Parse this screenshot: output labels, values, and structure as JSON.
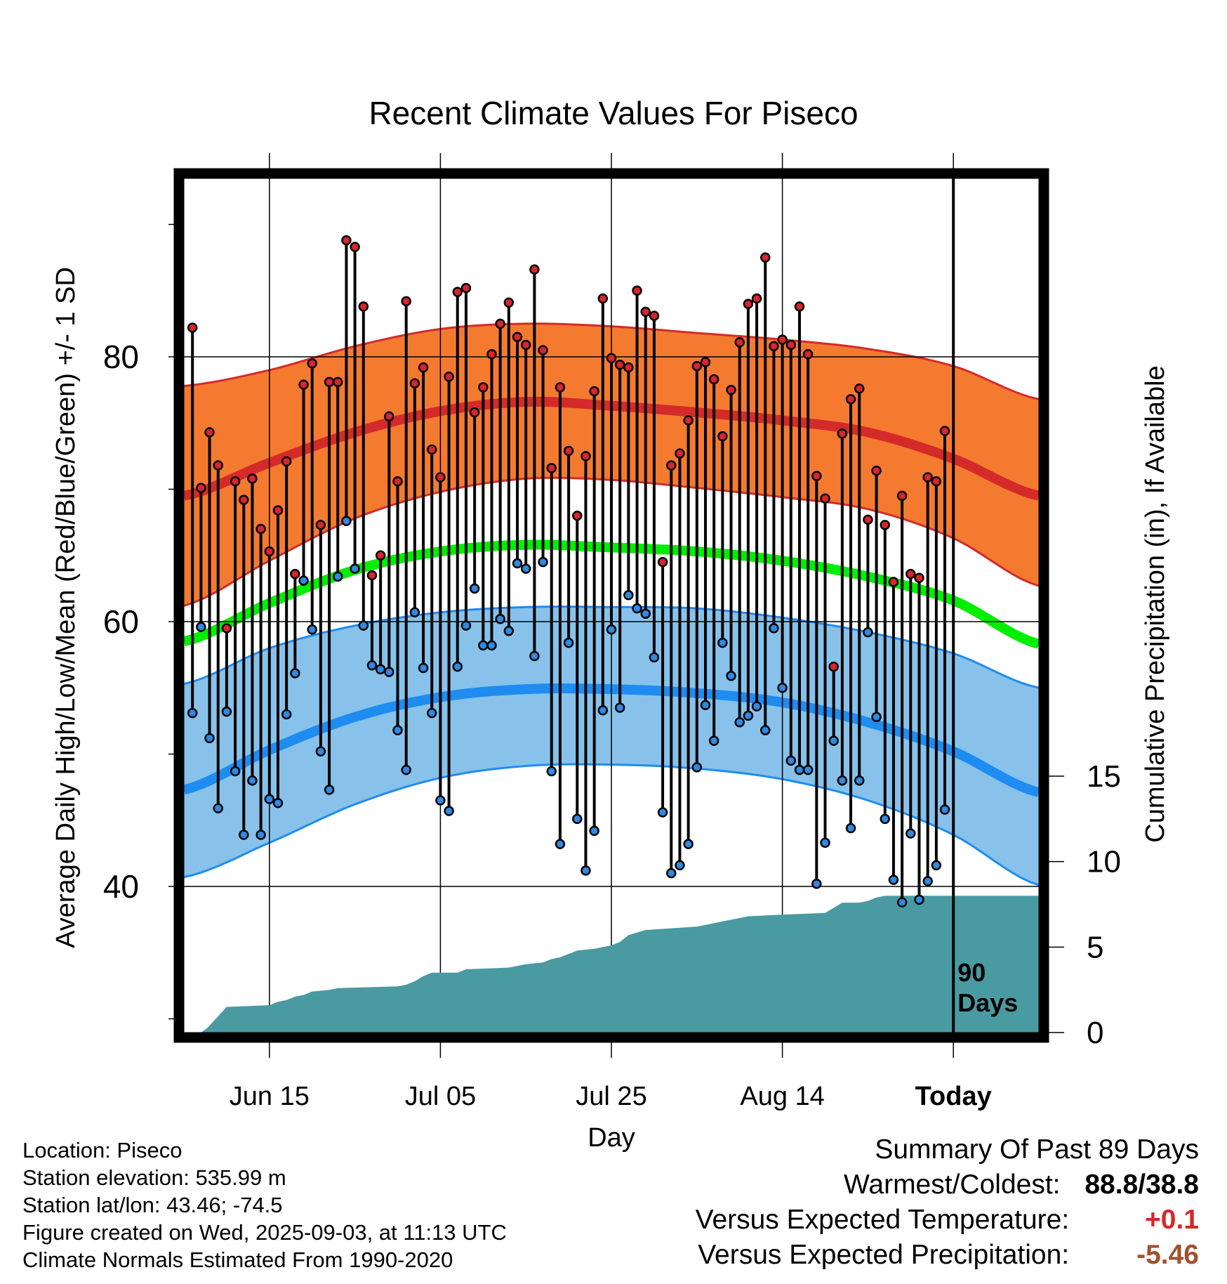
{
  "title": "Recent Climate Values For Piseco",
  "info": {
    "location": "Location: Piseco",
    "elevation": "Station elevation: 535.99 m",
    "latlon": "Station lat/lon: 43.46; -74.5",
    "created": "Figure created on Wed, 2025-09-03, at 11:13 UTC",
    "normals": "Climate Normals Estimated From 1990-2020"
  },
  "summary": {
    "heading": "Summary Of Past 89 Days",
    "warm_cold_label": "Warmest/Coldest:",
    "warm_cold_value": "88.8/38.8",
    "temp_label": "Versus Expected Temperature:",
    "temp_value": "+0.1",
    "precip_label": "Versus Expected Precipitation:",
    "precip_value": "-5.46"
  },
  "colors": {
    "high_band": "#f47a30",
    "high_mean": "#d42a2a",
    "low_band": "#88c2ea",
    "low_mean": "#1e8cf0",
    "mean_line": "#00ee00",
    "precip": "#4a9aa2",
    "high_marker": "#d8262a",
    "low_marker": "#2f8ae0",
    "temp_value": "#d42a2a",
    "precip_value": "#a0522d"
  },
  "chart_data": {
    "type": "line",
    "xlabel": "Day",
    "ylabel": "Average Daily High/Low/Mean (Red/Blue/Green) +/- 1 SD",
    "y2label": "Cumulative Precipitation (in), If Available",
    "x_tick_labels": [
      "Jun 15",
      "Jul 05",
      "Jul 25",
      "Aug 14",
      "Today"
    ],
    "x_tick_days": [
      10,
      30,
      50,
      70,
      90
    ],
    "y_ticks": [
      40,
      60,
      80
    ],
    "y_minor_ticks": [
      30,
      50,
      70,
      90
    ],
    "y_range": [
      29.5,
      93
    ],
    "y2_ticks": [
      0,
      5,
      10,
      15
    ],
    "y2_range": [
      0,
      50
    ],
    "x_range": [
      0,
      100
    ],
    "today_marker": {
      "day": 90,
      "label_line1": "90",
      "label_line2": "Days"
    },
    "normals": {
      "days": [
        0,
        10,
        20,
        30,
        40,
        50,
        60,
        70,
        80,
        90,
        100
      ],
      "high_mean": [
        69.5,
        72.0,
        74.3,
        75.9,
        76.6,
        76.3,
        75.8,
        75.2,
        74.3,
        72.3,
        69.5
      ],
      "high_upper": [
        77.8,
        79.0,
        80.8,
        82.1,
        82.5,
        82.3,
        81.8,
        81.3,
        80.6,
        79.3,
        76.8
      ],
      "high_lower": [
        61.2,
        64.6,
        67.8,
        69.8,
        70.8,
        70.7,
        70.1,
        69.4,
        68.5,
        66.3,
        62.7
      ],
      "mean": [
        58.5,
        61.4,
        63.9,
        65.3,
        65.8,
        65.6,
        65.3,
        64.6,
        63.4,
        61.6,
        58.3
      ],
      "low_mean": [
        47.3,
        50.3,
        52.8,
        54.3,
        54.9,
        54.9,
        54.6,
        53.9,
        52.4,
        50.2,
        47.1
      ],
      "low_upper": [
        55.3,
        58.0,
        59.7,
        60.7,
        61.1,
        61.1,
        61.0,
        60.3,
        59.2,
        57.6,
        55.0
      ],
      "low_lower": [
        40.7,
        43.3,
        46.2,
        48.2,
        49.1,
        49.2,
        48.9,
        48.1,
        46.5,
        43.9,
        40.1
      ]
    },
    "observations": {
      "days": [
        1,
        2,
        3,
        4,
        5,
        6,
        7,
        8,
        9,
        10,
        11,
        12,
        13,
        14,
        15,
        16,
        17,
        18,
        19,
        20,
        21,
        22,
        23,
        24,
        25,
        26,
        27,
        28,
        29,
        30,
        31,
        32,
        33,
        34,
        35,
        36,
        37,
        38,
        39,
        40,
        41,
        42,
        43,
        44,
        45,
        46,
        47,
        48,
        49,
        50,
        51,
        52,
        53,
        54,
        55,
        56,
        57,
        58,
        59,
        60,
        61,
        62,
        63,
        64,
        65,
        66,
        67,
        68,
        69,
        70,
        71,
        72,
        73,
        74,
        75,
        76,
        77,
        78,
        79,
        80,
        81,
        82,
        83,
        84,
        85,
        86,
        87,
        88,
        89
      ],
      "high": [
        82.2,
        70.1,
        74.3,
        71.8,
        59.5,
        70.6,
        69.2,
        70.8,
        67.0,
        65.3,
        68.4,
        72.1,
        63.6,
        77.9,
        79.5,
        67.3,
        78.1,
        78.1,
        88.8,
        88.3,
        83.8,
        63.5,
        65.0,
        75.5,
        70.6,
        84.2,
        78.0,
        79.2,
        73.0,
        70.9,
        78.5,
        84.9,
        85.2,
        75.8,
        77.7,
        80.2,
        82.5,
        84.1,
        81.5,
        80.9,
        86.6,
        80.5,
        71.6,
        77.7,
        72.9,
        68.0,
        72.5,
        77.4,
        84.4,
        79.9,
        79.4,
        79.2,
        85.0,
        83.4,
        83.1,
        64.5,
        71.8,
        72.7,
        75.2,
        79.3,
        79.6,
        78.3,
        74.0,
        77.5,
        81.1,
        84.0,
        84.4,
        87.5,
        80.8,
        81.3,
        80.9,
        83.8,
        80.2,
        71.0,
        69.3,
        56.6,
        74.2,
        76.8,
        77.6,
        67.7,
        71.4,
        67.3,
        63.0,
        69.5,
        63.6,
        63.3,
        70.9,
        70.6,
        74.4
      ],
      "low": [
        53.1,
        59.6,
        51.2,
        45.9,
        53.2,
        48.7,
        43.9,
        48.0,
        43.9,
        46.6,
        46.3,
        53.0,
        56.1,
        63.1,
        59.4,
        50.2,
        47.3,
        63.4,
        67.6,
        64.0,
        59.7,
        56.7,
        56.4,
        56.2,
        51.8,
        48.8,
        60.7,
        56.5,
        53.1,
        46.5,
        45.7,
        56.6,
        59.7,
        62.5,
        58.2,
        58.2,
        60.2,
        59.3,
        64.4,
        64.0,
        57.4,
        64.5,
        48.7,
        43.2,
        58.4,
        45.1,
        41.2,
        44.2,
        53.3,
        59.4,
        53.5,
        62.0,
        61.0,
        60.6,
        57.3,
        45.6,
        41.0,
        41.6,
        43.2,
        49.0,
        53.7,
        51.0,
        58.4,
        55.9,
        52.4,
        52.9,
        53.6,
        51.8,
        59.5,
        55.0,
        49.5,
        48.8,
        48.8,
        40.2,
        43.3,
        51.0,
        48.0,
        44.4,
        48.0,
        59.2,
        52.8,
        45.1,
        40.5,
        38.8,
        44.0,
        39.0,
        40.4,
        41.6,
        45.8
      ]
    },
    "precip_cumulative": {
      "days": [
        0,
        2,
        2.8,
        5,
        10,
        11,
        12,
        13,
        14,
        15,
        17,
        18,
        25,
        26,
        27,
        28,
        29,
        32,
        33,
        38,
        40,
        42,
        43,
        44,
        45,
        46,
        48,
        49,
        50,
        51,
        52,
        54,
        57,
        60,
        61,
        62,
        63,
        66,
        70,
        75,
        76,
        77,
        79,
        80,
        81,
        82,
        90,
        100
      ],
      "values": [
        0.0,
        0.0,
        0.3,
        1.5,
        1.6,
        1.8,
        1.9,
        2.1,
        2.2,
        2.4,
        2.5,
        2.6,
        2.7,
        2.8,
        3.0,
        3.3,
        3.5,
        3.5,
        3.7,
        3.8,
        4.0,
        4.1,
        4.3,
        4.4,
        4.6,
        4.8,
        4.9,
        5.0,
        5.1,
        5.3,
        5.7,
        6.0,
        6.1,
        6.2,
        6.3,
        6.4,
        6.5,
        6.8,
        6.9,
        7.0,
        7.3,
        7.6,
        7.6,
        7.7,
        7.9,
        8.0,
        8.0,
        8.0
      ]
    }
  }
}
